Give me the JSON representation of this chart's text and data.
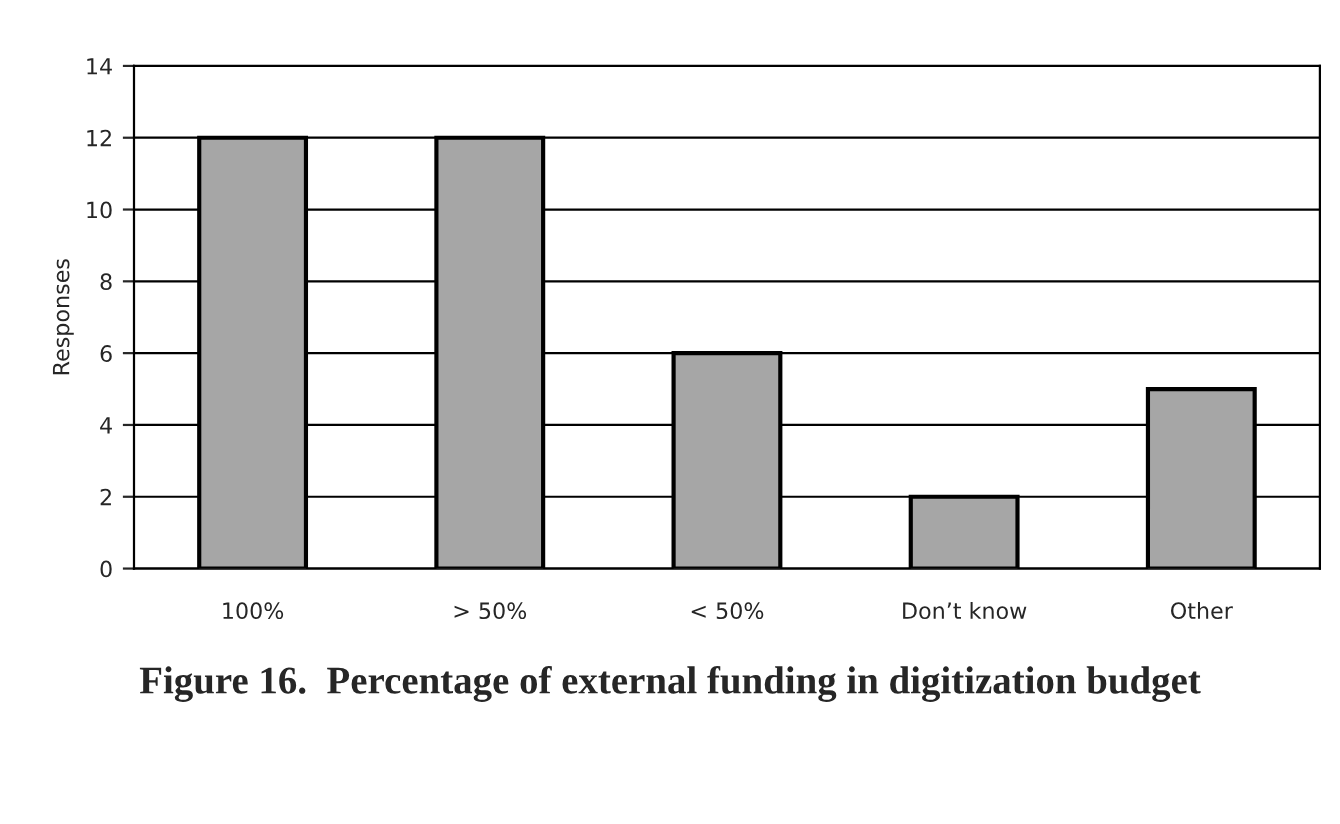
{
  "chart_data": {
    "type": "bar",
    "title": "Figure 16.  Percentage of external funding in digitization budget",
    "ylabel": "Responses",
    "categories": [
      "100%",
      "> 50%",
      "< 50%",
      "Don’t know",
      "Other"
    ],
    "values": [
      12,
      12,
      6,
      2,
      5
    ],
    "color": "#a6a6a6",
    "ylim": [
      0,
      14
    ],
    "yticks": [
      0,
      2,
      4,
      6,
      8,
      10,
      12,
      14
    ],
    "grid": "y",
    "legend": false
  }
}
